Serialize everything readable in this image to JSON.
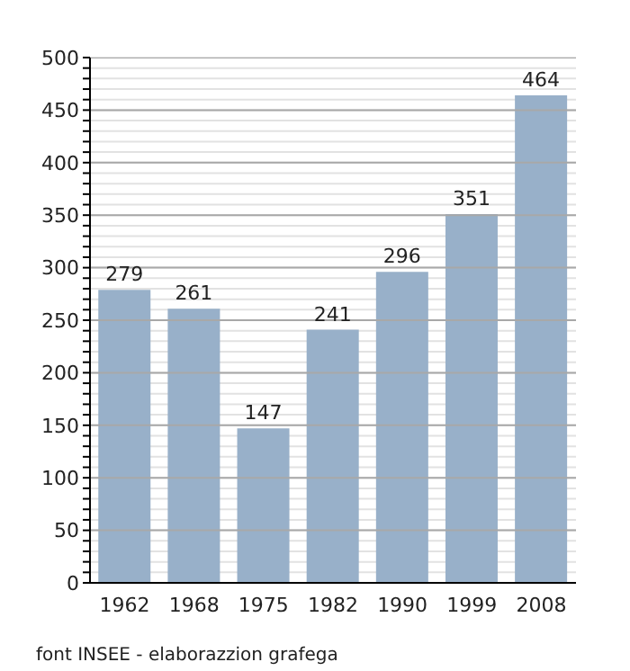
{
  "chart_data": {
    "type": "bar",
    "categories": [
      "1962",
      "1968",
      "1975",
      "1982",
      "1990",
      "1999",
      "2008"
    ],
    "values": [
      279,
      261,
      147,
      241,
      296,
      351,
      464
    ],
    "color": "#98b0c9",
    "data_labels": true,
    "ylim": [
      0,
      500
    ],
    "yticks": [
      0,
      {
        "value": 10,
        "label": null
      },
      {
        "value": 20,
        "label": null
      },
      {
        "value": 30,
        "label": null
      },
      {
        "value": 40,
        "label": null
      },
      50,
      {
        "value": 60,
        "label": null
      },
      {
        "value": 70,
        "label": null
      },
      {
        "value": 80,
        "label": null
      },
      {
        "value": 90,
        "label": null
      },
      100,
      {
        "value": 110,
        "label": null
      },
      {
        "value": 120,
        "label": null
      },
      {
        "value": 130,
        "label": null
      },
      {
        "value": 140,
        "label": null
      },
      150,
      {
        "value": 160,
        "label": null
      },
      {
        "value": 170,
        "label": null
      },
      {
        "value": 180,
        "label": null
      },
      {
        "value": 190,
        "label": null
      },
      200,
      {
        "value": 210,
        "label": null
      },
      {
        "value": 220,
        "label": null
      },
      {
        "value": 230,
        "label": null
      },
      {
        "value": 240,
        "label": null
      },
      250,
      {
        "value": 260,
        "label": null
      },
      {
        "value": 270,
        "label": null
      },
      {
        "value": 280,
        "label": null
      },
      {
        "value": 290,
        "label": null
      },
      300,
      {
        "value": 310,
        "label": null
      },
      {
        "value": 320,
        "label": null
      },
      {
        "value": 330,
        "label": null
      },
      {
        "value": 340,
        "label": null
      },
      350,
      {
        "value": 360,
        "label": null
      },
      {
        "value": 370,
        "label": null
      },
      {
        "value": 380,
        "label": null
      },
      {
        "value": 390,
        "label": null
      },
      400,
      {
        "value": 410,
        "label": null
      },
      {
        "value": 420,
        "label": null
      },
      {
        "value": 430,
        "label": null
      },
      {
        "value": 440,
        "label": null
      },
      450,
      {
        "value": 460,
        "label": null
      },
      {
        "value": 470,
        "label": null
      },
      {
        "value": 480,
        "label": null
      },
      {
        "value": 490,
        "label": null
      },
      500
    ],
    "grid": "y",
    "annotations": [
      "font INSEE - elaborazzion grafega"
    ]
  }
}
